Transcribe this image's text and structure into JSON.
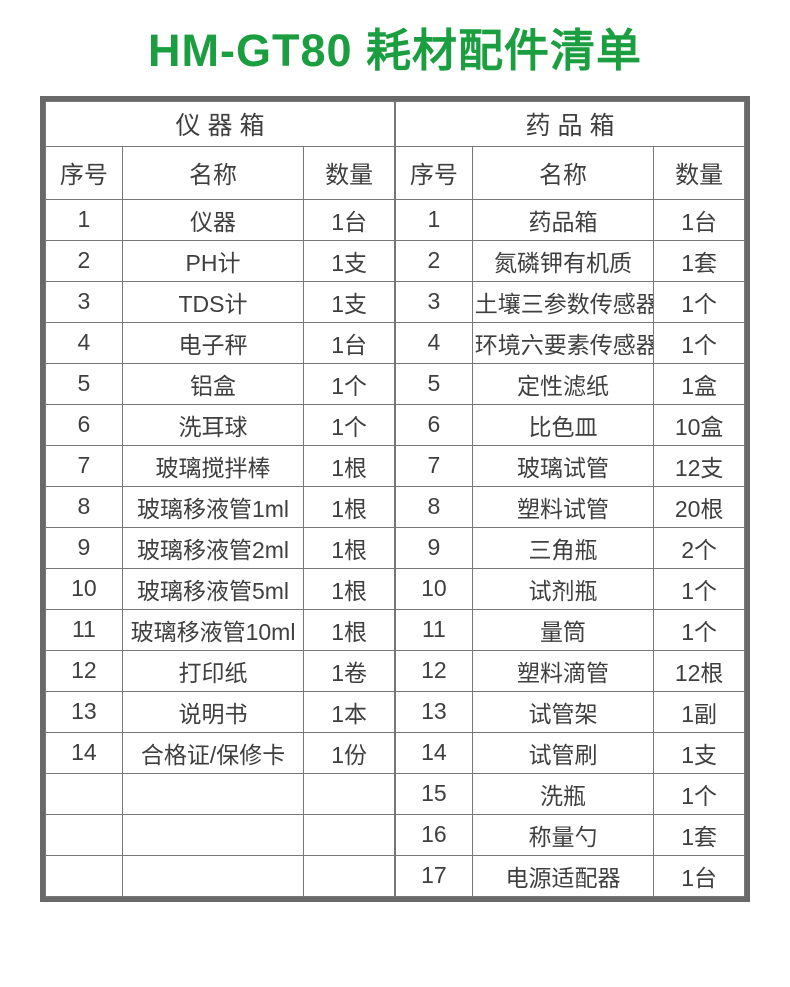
{
  "title": "HM-GT80 耗材配件清单",
  "colors": {
    "title_green": "#1a9e3f",
    "text": "#3f3f3f",
    "outer_border": "#696969",
    "inner_border": "#777777"
  },
  "tables": [
    {
      "group_header": "仪 器 箱",
      "columns": [
        "序号",
        "名称",
        "数量"
      ],
      "rows": [
        {
          "no": "1",
          "name": "仪器",
          "qty": "1台"
        },
        {
          "no": "2",
          "name": "PH计",
          "qty": "1支"
        },
        {
          "no": "3",
          "name": "TDS计",
          "qty": "1支"
        },
        {
          "no": "4",
          "name": "电子秤",
          "qty": "1台"
        },
        {
          "no": "5",
          "name": "铝盒",
          "qty": "1个"
        },
        {
          "no": "6",
          "name": "洗耳球",
          "qty": "1个"
        },
        {
          "no": "7",
          "name": "玻璃搅拌棒",
          "qty": "1根"
        },
        {
          "no": "8",
          "name": "玻璃移液管1ml",
          "qty": "1根"
        },
        {
          "no": "9",
          "name": "玻璃移液管2ml",
          "qty": "1根"
        },
        {
          "no": "10",
          "name": "玻璃移液管5ml",
          "qty": "1根"
        },
        {
          "no": "11",
          "name": "玻璃移液管10ml",
          "qty": "1根"
        },
        {
          "no": "12",
          "name": "打印纸",
          "qty": "1卷"
        },
        {
          "no": "13",
          "name": "说明书",
          "qty": "1本"
        },
        {
          "no": "14",
          "name": "合格证/保修卡",
          "qty": "1份"
        }
      ],
      "empty_rows": 3
    },
    {
      "group_header": "药 品 箱",
      "columns": [
        "序号",
        "名称",
        "数量"
      ],
      "rows": [
        {
          "no": "1",
          "name": "药品箱",
          "qty": "1台"
        },
        {
          "no": "2",
          "name": "氮磷钾有机质",
          "qty": "1套"
        },
        {
          "no": "3",
          "name": "土壤三参数传感器",
          "qty": "1个"
        },
        {
          "no": "4",
          "name": "环境六要素传感器",
          "qty": "1个"
        },
        {
          "no": "5",
          "name": "定性滤纸",
          "qty": "1盒"
        },
        {
          "no": "6",
          "name": "比色皿",
          "qty": "10盒"
        },
        {
          "no": "7",
          "name": "玻璃试管",
          "qty": "12支"
        },
        {
          "no": "8",
          "name": "塑料试管",
          "qty": "20根"
        },
        {
          "no": "9",
          "name": "三角瓶",
          "qty": "2个"
        },
        {
          "no": "10",
          "name": "试剂瓶",
          "qty": "1个"
        },
        {
          "no": "11",
          "name": "量筒",
          "qty": "1个"
        },
        {
          "no": "12",
          "name": "塑料滴管",
          "qty": "12根"
        },
        {
          "no": "13",
          "name": "试管架",
          "qty": "1副"
        },
        {
          "no": "14",
          "name": "试管刷",
          "qty": "1支"
        },
        {
          "no": "15",
          "name": "洗瓶",
          "qty": "1个"
        },
        {
          "no": "16",
          "name": "称量勺",
          "qty": "1套"
        },
        {
          "no": "17",
          "name": "电源适配器",
          "qty": "1台"
        }
      ],
      "empty_rows": 0
    }
  ]
}
